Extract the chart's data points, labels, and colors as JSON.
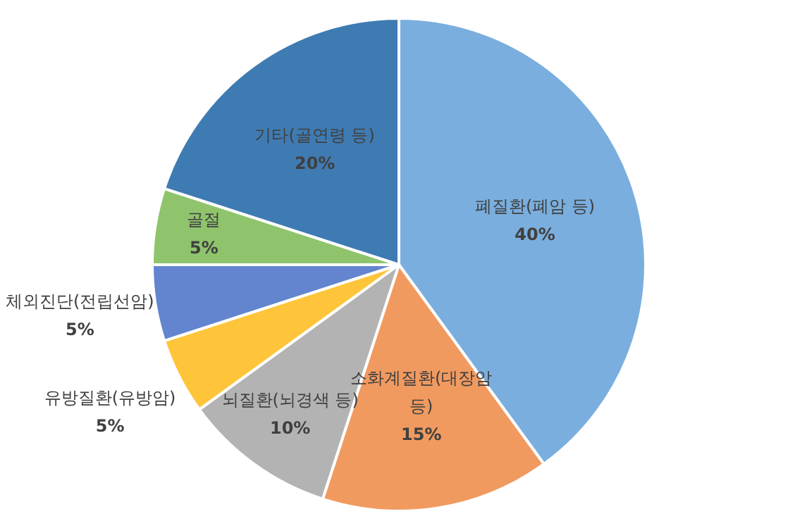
{
  "chart_data": {
    "type": "pie",
    "categories": [
      "폐질환(폐암 등)",
      "소화계질환(대장암 등)",
      "뇌질환(뇌경색 등)",
      "유방질환(유방암)",
      "체외진단(전립선암)",
      "골절",
      "기타(골연령 등)"
    ],
    "values": [
      40,
      15,
      10,
      5,
      5,
      5,
      20
    ],
    "value_labels": [
      "40%",
      "15%",
      "10%",
      "5%",
      "5%",
      "5%",
      "20%"
    ],
    "colors": [
      "#7aaede",
      "#f19a60",
      "#b3b3b3",
      "#fec53a",
      "#6385cf",
      "#8fc46c",
      "#3f7bb3"
    ]
  }
}
